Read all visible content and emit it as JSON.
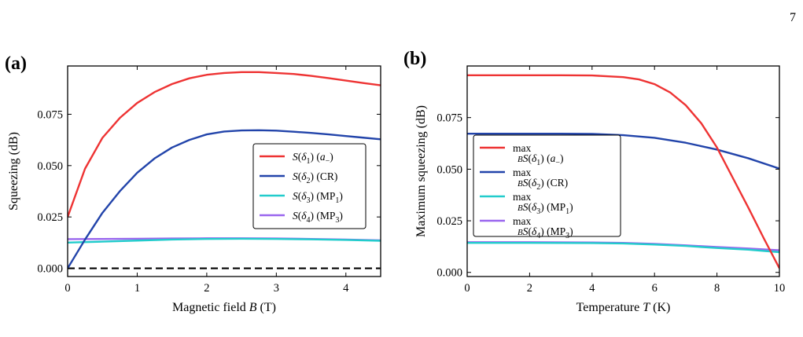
{
  "page_number": "7",
  "chart_data": [
    {
      "panel_label": "(a)",
      "type": "line",
      "xlabel_parts": [
        "Magnetic field ",
        "B",
        " (T)"
      ],
      "ylabel": "Squeezing (dB)",
      "xlim": [
        0,
        4.5
      ],
      "ylim": [
        -0.004,
        0.0985
      ],
      "xticks": [
        0,
        1,
        2,
        3,
        4
      ],
      "xtick_labels": [
        "0",
        "1",
        "2",
        "3",
        "4"
      ],
      "yticks": [
        0.0,
        0.025,
        0.05,
        0.075
      ],
      "ytick_labels": [
        "0.000",
        "0.025",
        "0.050",
        "0.075"
      ],
      "legend_position": "center-right",
      "reference_line": {
        "y": 0,
        "style": "dashed",
        "color": "#000000"
      },
      "series": [
        {
          "name": "S(δ1) (a−)",
          "color": "#ee3333",
          "x": [
            0,
            0.25,
            0.5,
            0.75,
            1.0,
            1.25,
            1.5,
            1.75,
            2.0,
            2.25,
            2.5,
            2.75,
            3.0,
            3.25,
            3.5,
            3.75,
            4.0,
            4.25,
            4.5
          ],
          "y": [
            0.025,
            0.0485,
            0.0635,
            0.0732,
            0.0805,
            0.0858,
            0.0897,
            0.0925,
            0.0942,
            0.0951,
            0.0955,
            0.0955,
            0.0951,
            0.0946,
            0.0937,
            0.0926,
            0.0914,
            0.0902,
            0.0891
          ]
        },
        {
          "name": "S(δ2) (CR)",
          "color": "#2244aa",
          "x": [
            0,
            0.25,
            0.5,
            0.75,
            1.0,
            1.25,
            1.5,
            1.75,
            2.0,
            2.25,
            2.5,
            2.75,
            3.0,
            3.25,
            3.5,
            3.75,
            4.0,
            4.25,
            4.5
          ],
          "y": [
            0.0,
            0.014,
            0.027,
            0.0375,
            0.0465,
            0.0535,
            0.0588,
            0.0625,
            0.0652,
            0.0666,
            0.0671,
            0.0672,
            0.067,
            0.0665,
            0.0659,
            0.0652,
            0.0644,
            0.0636,
            0.0628
          ]
        },
        {
          "name": "S(δ3) (MP1)",
          "color": "#22cccc",
          "x": [
            0,
            0.5,
            1.0,
            1.5,
            2.0,
            2.5,
            3.0,
            3.5,
            4.0,
            4.5
          ],
          "y": [
            0.0125,
            0.013,
            0.0135,
            0.014,
            0.0143,
            0.0144,
            0.0143,
            0.0141,
            0.0138,
            0.0134
          ]
        },
        {
          "name": "S(δ4) (MP3)",
          "color": "#9966ee",
          "x": [
            0,
            0.5,
            1.0,
            1.5,
            2.0,
            2.5,
            3.0,
            3.5,
            4.0,
            4.5
          ],
          "y": [
            0.0142,
            0.0143,
            0.0144,
            0.0145,
            0.0146,
            0.0146,
            0.0145,
            0.0143,
            0.014,
            0.0136
          ]
        }
      ]
    },
    {
      "panel_label": "(b)",
      "type": "line",
      "xlabel_parts": [
        "Temperature ",
        "T",
        " (K)"
      ],
      "ylabel": "Maximum squeezing (dB)",
      "xlim": [
        0,
        10
      ],
      "ylim": [
        -0.002,
        0.1
      ],
      "xticks": [
        0,
        2,
        4,
        6,
        8,
        10
      ],
      "xtick_labels": [
        "0",
        "2",
        "4",
        "6",
        "8",
        "10"
      ],
      "yticks": [
        0.0,
        0.025,
        0.05,
        0.075
      ],
      "ytick_labels": [
        "0.000",
        "0.025",
        "0.050",
        "0.075"
      ],
      "legend_position": "center-left",
      "legend_prefix": "max",
      "legend_prefix_sub": "B",
      "series": [
        {
          "name": "S(δ1) (a−)",
          "color": "#ee3333",
          "x": [
            0,
            1,
            2,
            3,
            4,
            5,
            5.5,
            6,
            6.5,
            7,
            7.5,
            8,
            8.5,
            9,
            9.5,
            10
          ],
          "y": [
            0.0955,
            0.0955,
            0.0955,
            0.0955,
            0.0954,
            0.0946,
            0.0935,
            0.0912,
            0.0872,
            0.081,
            0.0722,
            0.0605,
            0.046,
            0.0315,
            0.0165,
            0.002
          ]
        },
        {
          "name": "S(δ2) (CR)",
          "color": "#2244aa",
          "x": [
            0,
            1,
            2,
            3,
            4,
            5,
            6,
            7,
            8,
            9,
            10
          ],
          "y": [
            0.0672,
            0.0672,
            0.0672,
            0.0672,
            0.0671,
            0.0665,
            0.0652,
            0.0628,
            0.0595,
            0.0553,
            0.0503
          ]
        },
        {
          "name": "S(δ3) (MP1)",
          "color": "#22cccc",
          "x": [
            0,
            2,
            4,
            5,
            6,
            7,
            8,
            9,
            10
          ],
          "y": [
            0.0143,
            0.0143,
            0.0142,
            0.014,
            0.0135,
            0.0128,
            0.0118,
            0.011,
            0.0098
          ]
        },
        {
          "name": "S(δ4) (MP3)",
          "color": "#9966ee",
          "x": [
            0,
            2,
            4,
            5,
            6,
            7,
            8,
            9,
            10
          ],
          "y": [
            0.0146,
            0.0146,
            0.0145,
            0.0143,
            0.0138,
            0.0131,
            0.0123,
            0.0116,
            0.0107
          ]
        }
      ]
    }
  ]
}
